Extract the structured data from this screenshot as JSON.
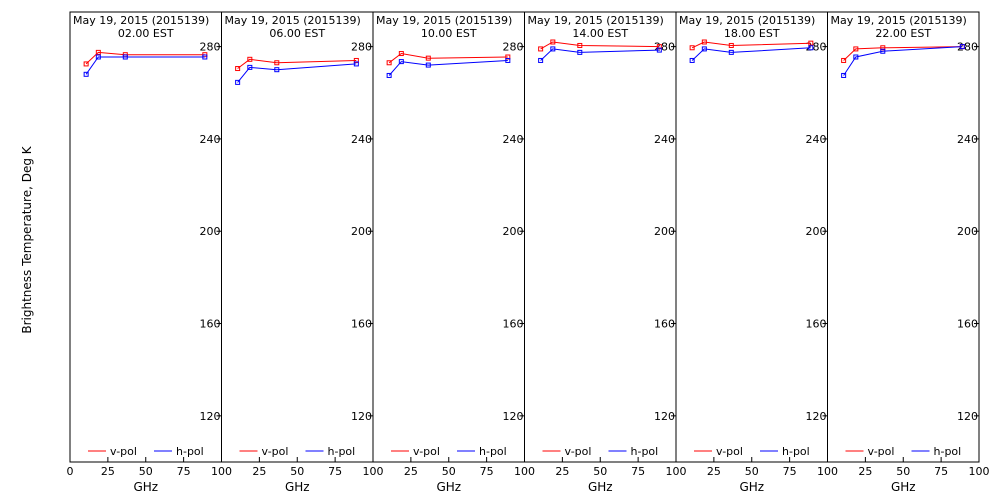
{
  "figure": {
    "ylabel": "Brightness Temperature, Deg K",
    "xlabel": "GHz",
    "x_ticks": [
      0,
      25,
      50,
      75,
      100
    ],
    "y_ticks": [
      120,
      160,
      200,
      240,
      280
    ],
    "colors": {
      "v": "#ff0000",
      "h": "#0000ff",
      "axis": "#000000",
      "background": "#ffffff"
    },
    "series_names": [
      "v-pol",
      "h-pol"
    ]
  },
  "chart_data": [
    {
      "type": "line",
      "title": "May 19, 2015 (2015139)",
      "subtitle": "02.00 EST",
      "xlabel": "GHz",
      "ylabel": "Brightness Temperature, Deg K",
      "xlim": [
        0,
        100
      ],
      "ylim": [
        100,
        295
      ],
      "grid": false,
      "legend": "bottom",
      "series": [
        {
          "name": "v-pol",
          "x": [
            10.65,
            18.7,
            36.5,
            89
          ],
          "values": [
            272.5,
            277.5,
            276.5,
            276.5
          ]
        },
        {
          "name": "h-pol",
          "x": [
            10.65,
            18.7,
            36.5,
            89
          ],
          "values": [
            268,
            275.5,
            275.5,
            275.5
          ]
        }
      ]
    },
    {
      "type": "line",
      "title": "May 19, 2015 (2015139)",
      "subtitle": "06.00 EST",
      "xlabel": "GHz",
      "ylabel": "",
      "xlim": [
        0,
        100
      ],
      "ylim": [
        100,
        295
      ],
      "grid": false,
      "legend": "bottom",
      "series": [
        {
          "name": "v-pol",
          "x": [
            10.65,
            18.7,
            36.5,
            89
          ],
          "values": [
            270.5,
            274.5,
            273,
            274
          ]
        },
        {
          "name": "h-pol",
          "x": [
            10.65,
            18.7,
            36.5,
            89
          ],
          "values": [
            264.5,
            271,
            270,
            272.5
          ]
        }
      ]
    },
    {
      "type": "line",
      "title": "May 19, 2015 (2015139)",
      "subtitle": "10.00 EST",
      "xlabel": "GHz",
      "ylabel": "",
      "xlim": [
        0,
        100
      ],
      "ylim": [
        100,
        295
      ],
      "grid": false,
      "legend": "bottom",
      "series": [
        {
          "name": "v-pol",
          "x": [
            10.65,
            18.7,
            36.5,
            89
          ],
          "values": [
            273,
            277,
            275,
            275.5
          ]
        },
        {
          "name": "h-pol",
          "x": [
            10.65,
            18.7,
            36.5,
            89
          ],
          "values": [
            267.5,
            273.5,
            272,
            274
          ]
        }
      ]
    },
    {
      "type": "line",
      "title": "May 19, 2015 (2015139)",
      "subtitle": "14.00 EST",
      "xlabel": "GHz",
      "ylabel": "",
      "xlim": [
        0,
        100
      ],
      "ylim": [
        100,
        295
      ],
      "grid": false,
      "legend": "bottom",
      "series": [
        {
          "name": "v-pol",
          "x": [
            10.65,
            18.7,
            36.5,
            89
          ],
          "values": [
            279,
            282,
            280.5,
            280
          ]
        },
        {
          "name": "h-pol",
          "x": [
            10.65,
            18.7,
            36.5,
            89
          ],
          "values": [
            274,
            279,
            277.5,
            278.5
          ]
        }
      ]
    },
    {
      "type": "line",
      "title": "May 19, 2015 (2015139)",
      "subtitle": "18.00 EST",
      "xlabel": "GHz",
      "ylabel": "",
      "xlim": [
        0,
        100
      ],
      "ylim": [
        100,
        295
      ],
      "grid": false,
      "legend": "bottom",
      "series": [
        {
          "name": "v-pol",
          "x": [
            10.65,
            18.7,
            36.5,
            89
          ],
          "values": [
            279.5,
            282,
            280.5,
            281.5
          ]
        },
        {
          "name": "h-pol",
          "x": [
            10.65,
            18.7,
            36.5,
            89
          ],
          "values": [
            274,
            279,
            277.5,
            279.5
          ]
        }
      ]
    },
    {
      "type": "line",
      "title": "May 19, 2015 (2015139)",
      "subtitle": "22.00 EST",
      "xlabel": "GHz",
      "ylabel": "",
      "xlim": [
        0,
        100
      ],
      "ylim": [
        100,
        295
      ],
      "grid": false,
      "legend": "bottom",
      "series": [
        {
          "name": "v-pol",
          "x": [
            10.65,
            18.7,
            36.5,
            89
          ],
          "values": [
            274,
            279,
            279.5,
            280
          ]
        },
        {
          "name": "h-pol",
          "x": [
            10.65,
            18.7,
            36.5,
            89
          ],
          "values": [
            267.5,
            275.5,
            278,
            280
          ]
        }
      ]
    }
  ]
}
